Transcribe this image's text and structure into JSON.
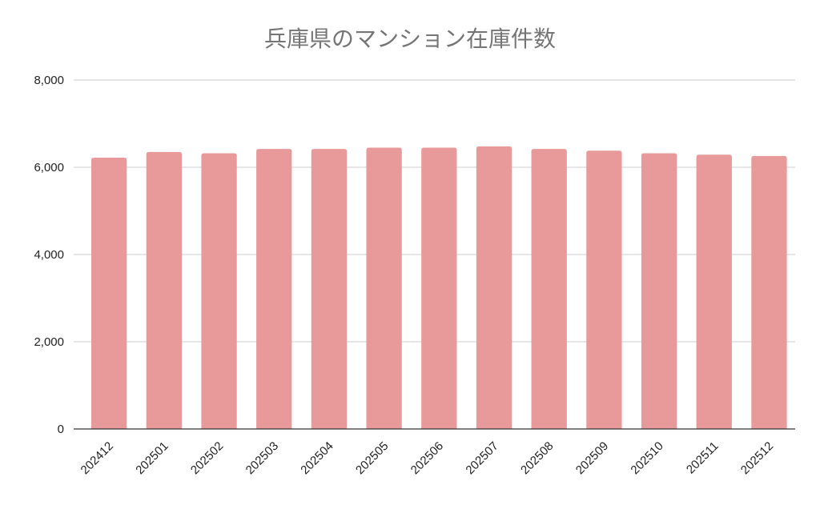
{
  "chart_data": {
    "type": "bar",
    "title": "兵庫県のマンション在庫件数",
    "xlabel": "",
    "ylabel": "",
    "categories": [
      "202412",
      "202501",
      "202502",
      "202503",
      "202504",
      "202505",
      "202506",
      "202507",
      "202508",
      "202509",
      "202510",
      "202511",
      "202512"
    ],
    "series": [
      {
        "values": [
          6220,
          6350,
          6320,
          6420,
          6420,
          6450,
          6450,
          6480,
          6420,
          6380,
          6320,
          6290,
          6260
        ]
      }
    ],
    "ylim": [
      0,
      8000
    ],
    "yticks": [
      0,
      2000,
      4000,
      6000,
      8000
    ],
    "ytick_labels": [
      "0",
      "2,000",
      "4,000",
      "6,000",
      "8,000"
    ],
    "grid": true,
    "legend": "none",
    "bar_color": "#e89a9a"
  }
}
